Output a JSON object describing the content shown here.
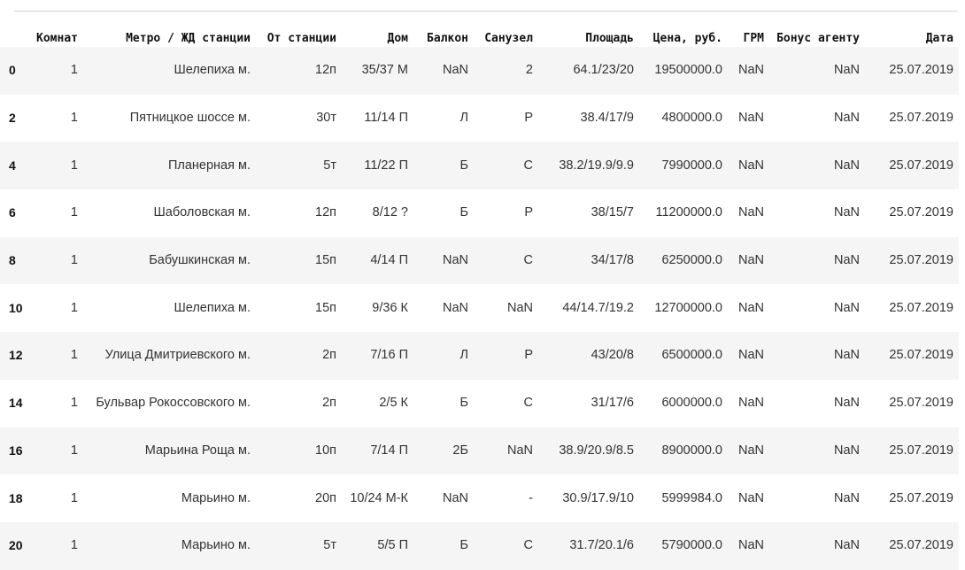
{
  "table": {
    "index_header": "",
    "columns": [
      "Комнат",
      "Метро / ЖД станции",
      "От станции",
      "Дом",
      "Балкон",
      "Санузел",
      "Площадь",
      "Цена, руб.",
      "ГРМ",
      "Бонус агенту",
      "Дата"
    ],
    "rows": [
      {
        "index": "0",
        "cells": [
          "1",
          "Шелепиха м.",
          "12п",
          "35/37 М",
          "NaN",
          "2",
          "64.1/23/20",
          "19500000.0",
          "NaN",
          "NaN",
          "25.07.2019"
        ]
      },
      {
        "index": "2",
        "cells": [
          "1",
          "Пятницкое шоссе м.",
          "30т",
          "11/14 П",
          "Л",
          "Р",
          "38.4/17/9",
          "4800000.0",
          "NaN",
          "NaN",
          "25.07.2019"
        ]
      },
      {
        "index": "4",
        "cells": [
          "1",
          "Планерная м.",
          "5т",
          "11/22 П",
          "Б",
          "С",
          "38.2/19.9/9.9",
          "7990000.0",
          "NaN",
          "NaN",
          "25.07.2019"
        ]
      },
      {
        "index": "6",
        "cells": [
          "1",
          "Шаболовская м.",
          "12п",
          "8/12 ?",
          "Б",
          "Р",
          "38/15/7",
          "11200000.0",
          "NaN",
          "NaN",
          "25.07.2019"
        ]
      },
      {
        "index": "8",
        "cells": [
          "1",
          "Бабушкинская м.",
          "15п",
          "4/14 П",
          "NaN",
          "С",
          "34/17/8",
          "6250000.0",
          "NaN",
          "NaN",
          "25.07.2019"
        ]
      },
      {
        "index": "10",
        "cells": [
          "1",
          "Шелепиха м.",
          "15п",
          "9/36 К",
          "NaN",
          "NaN",
          "44/14.7/19.2",
          "12700000.0",
          "NaN",
          "NaN",
          "25.07.2019"
        ]
      },
      {
        "index": "12",
        "cells": [
          "1",
          "Улица Дмитриевского м.",
          "2п",
          "7/16 П",
          "Л",
          "Р",
          "43/20/8",
          "6500000.0",
          "NaN",
          "NaN",
          "25.07.2019"
        ]
      },
      {
        "index": "14",
        "cells": [
          "1",
          "Бульвар Рокоссовского м.",
          "2п",
          "2/5 К",
          "Б",
          "С",
          "31/17/6",
          "6000000.0",
          "NaN",
          "NaN",
          "25.07.2019"
        ]
      },
      {
        "index": "16",
        "cells": [
          "1",
          "Марьина Роща м.",
          "10п",
          "7/14 П",
          "2Б",
          "NaN",
          "38.9/20.9/8.5",
          "8900000.0",
          "NaN",
          "NaN",
          "25.07.2019"
        ]
      },
      {
        "index": "18",
        "cells": [
          "1",
          "Марьино м.",
          "20п",
          "10/24 М-К",
          "NaN",
          "-",
          "30.9/17.9/10",
          "5999984.0",
          "NaN",
          "NaN",
          "25.07.2019"
        ]
      },
      {
        "index": "20",
        "cells": [
          "1",
          "Марьино м.",
          "5т",
          "5/5 П",
          "Б",
          "С",
          "31.7/20.1/6",
          "5790000.0",
          "NaN",
          "NaN",
          "25.07.2019"
        ]
      }
    ]
  }
}
